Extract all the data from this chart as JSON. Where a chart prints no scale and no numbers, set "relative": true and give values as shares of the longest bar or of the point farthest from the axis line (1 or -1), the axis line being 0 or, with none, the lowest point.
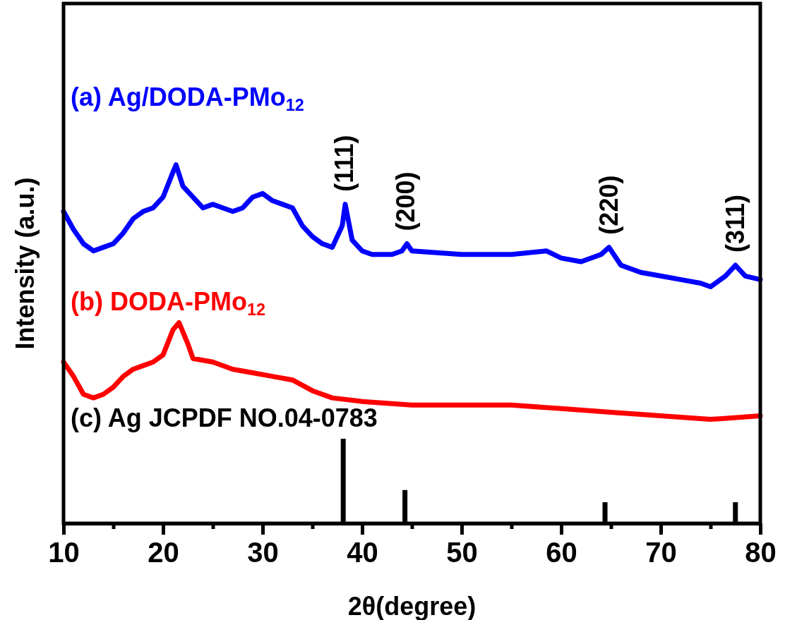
{
  "chart_data": {
    "type": "line",
    "relative": true,
    "xlabel": "2θ(degree)",
    "ylabel": "Intensity (a.u.)",
    "xlim": [
      10,
      80
    ],
    "xticks": [
      10,
      {
        "value": 15,
        "label": null
      },
      20,
      {
        "value": 25,
        "label": null
      },
      30,
      {
        "value": 35,
        "label": null
      },
      40,
      {
        "value": 45,
        "label": null
      },
      50,
      {
        "value": 55,
        "label": null
      },
      60,
      {
        "value": 65,
        "label": null
      },
      70,
      {
        "value": 75,
        "label": null
      },
      80
    ],
    "grid": false,
    "legend": false,
    "marker": "none",
    "line_style": "solid",
    "series": [
      {
        "name": "(a) Ag/DODA-PMo$_{12}$",
        "color": "#0000ff",
        "x": [
          10,
          11,
          12,
          13,
          14,
          15,
          16,
          17,
          18,
          19,
          20,
          21,
          21.3,
          22,
          23,
          24,
          25,
          26,
          27,
          28,
          29,
          30,
          31,
          32,
          33,
          34,
          35,
          36,
          37,
          38,
          38.3,
          39,
          40,
          41,
          42,
          43,
          44,
          44.5,
          45,
          50,
          55,
          58.5,
          60,
          62,
          64,
          64.8,
          66,
          68,
          70,
          72,
          74,
          75,
          76.5,
          77.5,
          78.5,
          80
        ],
        "values": [
          0.87,
          0.82,
          0.78,
          0.76,
          0.77,
          0.78,
          0.81,
          0.85,
          0.87,
          0.88,
          0.91,
          0.98,
          1.0,
          0.94,
          0.91,
          0.88,
          0.89,
          0.88,
          0.87,
          0.88,
          0.91,
          0.92,
          0.9,
          0.89,
          0.88,
          0.83,
          0.8,
          0.78,
          0.77,
          0.83,
          0.89,
          0.79,
          0.76,
          0.75,
          0.75,
          0.75,
          0.76,
          0.78,
          0.76,
          0.75,
          0.75,
          0.76,
          0.74,
          0.73,
          0.75,
          0.77,
          0.72,
          0.7,
          0.69,
          0.68,
          0.67,
          0.66,
          0.69,
          0.72,
          0.69,
          0.68
        ]
      },
      {
        "name": "(b) DODA-PMo$_{12}$",
        "color": "#ff0000",
        "x": [
          10,
          11,
          12,
          13,
          14,
          15,
          16,
          17,
          18,
          19,
          20,
          21,
          21.6,
          22.5,
          23,
          25,
          27,
          29,
          31,
          33,
          35,
          37,
          40,
          45,
          50,
          55,
          60,
          65,
          70,
          75,
          80
        ],
        "values": [
          0.45,
          0.41,
          0.36,
          0.35,
          0.36,
          0.38,
          0.41,
          0.43,
          0.44,
          0.45,
          0.47,
          0.54,
          0.56,
          0.5,
          0.46,
          0.45,
          0.43,
          0.42,
          0.41,
          0.4,
          0.37,
          0.35,
          0.34,
          0.33,
          0.33,
          0.33,
          0.32,
          0.31,
          0.3,
          0.29,
          0.3
        ]
      },
      {
        "name": "(c) Ag JCPDF NO.04-0783",
        "type": "bar",
        "color": "#000000",
        "x": [
          38.1,
          44.3,
          64.4,
          77.5
        ],
        "values": [
          0.236,
          0.093,
          0.059,
          0.059
        ]
      }
    ],
    "annotations": [
      {
        "text": "(111)",
        "x": 38.2,
        "y": 0.89
      },
      {
        "text": "(200)",
        "x": 44.4,
        "y": 0.78
      },
      {
        "text": "(220)",
        "x": 64.8,
        "y": 0.77
      },
      {
        "text": "(311)",
        "x": 77.5,
        "y": 0.72
      }
    ]
  }
}
